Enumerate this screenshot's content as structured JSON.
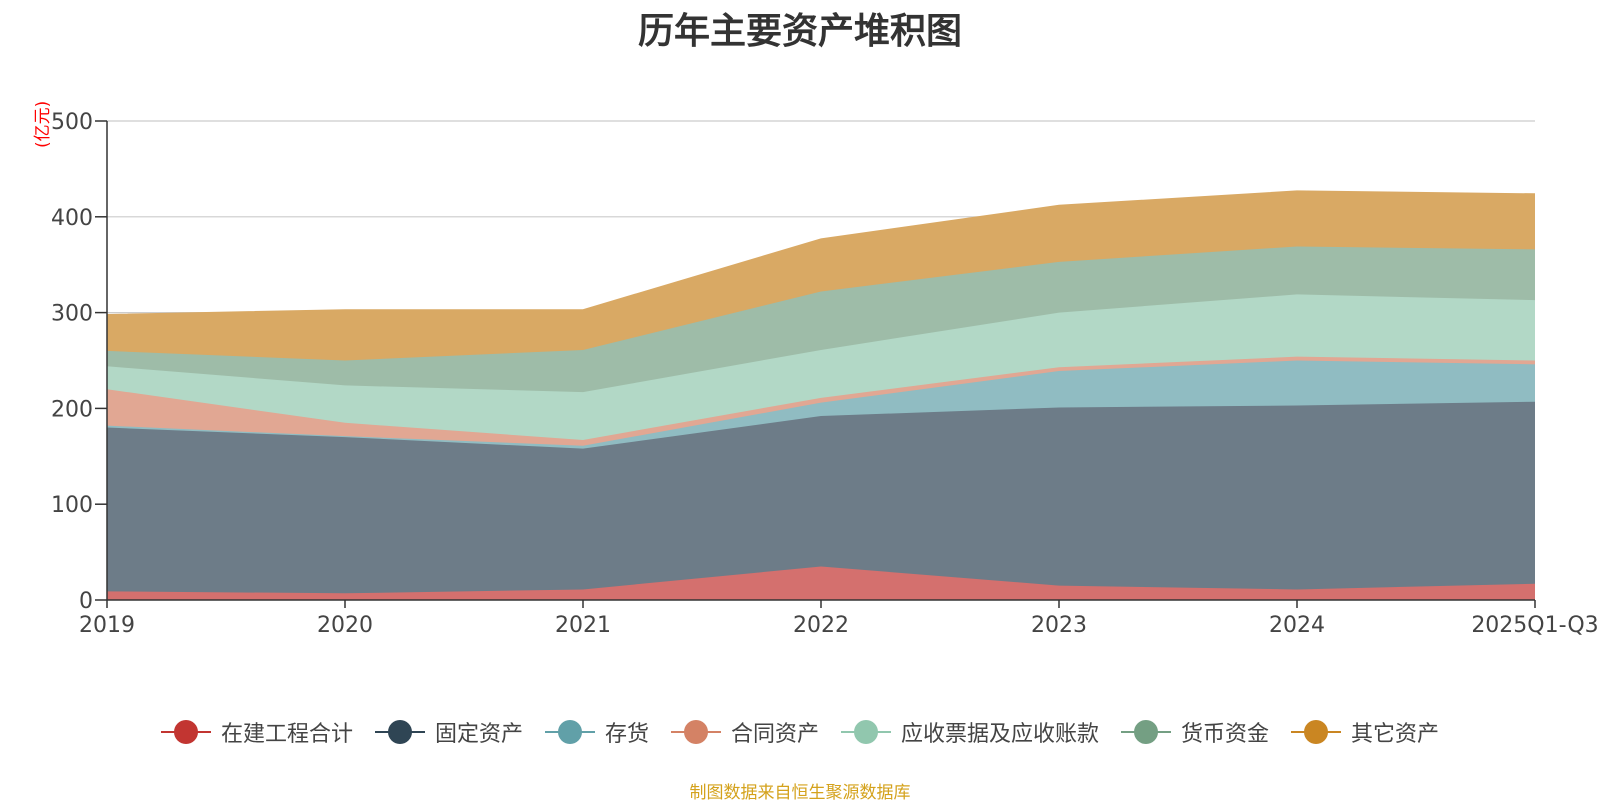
{
  "chart_data": {
    "type": "area",
    "stacked": true,
    "title": "历年主要资产堆积图",
    "y_unit": "(亿元)",
    "ylim": [
      0,
      500
    ],
    "yticks": [
      "0",
      "100",
      "200",
      "300",
      "400",
      "500"
    ],
    "categories": [
      "2019",
      "2020",
      "2021",
      "2022",
      "2023",
      "2024",
      "2025Q1-Q3"
    ],
    "series": [
      {
        "name": "在建工程合计",
        "color": "#c23531",
        "area_color": "#d4706e",
        "values": [
          9,
          7,
          11,
          35,
          15,
          11,
          17
        ]
      },
      {
        "name": "固定资产",
        "color": "#2f4554",
        "area_color": "#6d7c88",
        "values": [
          171,
          163,
          147,
          157,
          186,
          192,
          190
        ]
      },
      {
        "name": "存货",
        "color": "#61a0a8",
        "area_color": "#90bcc2",
        "values": [
          2,
          1,
          3,
          14,
          38,
          47,
          39
        ]
      },
      {
        "name": "合同资产",
        "color": "#d48265",
        "area_color": "#e1a793",
        "values": [
          38,
          14,
          6,
          5,
          4,
          4,
          4
        ]
      },
      {
        "name": "应收票据及应收账款",
        "color": "#91c7ae",
        "area_color": "#b2d8c6",
        "values": [
          24,
          39,
          50,
          50,
          57,
          65,
          63
        ]
      },
      {
        "name": "货币资金",
        "color": "#749f83",
        "area_color": "#9ebca8",
        "values": [
          16,
          26,
          44,
          61,
          53,
          50,
          53
        ]
      },
      {
        "name": "其它资产",
        "color": "#ca8622",
        "area_color": "#d9a964",
        "values": [
          38,
          53,
          42,
          55,
          59,
          58,
          58
        ]
      }
    ]
  },
  "source_note": "制图数据来自恒生聚源数据库",
  "colors": {
    "title": "#333333",
    "axis": "#333333",
    "grid": "#cccccc",
    "y_unit": "#ff0000",
    "source_note": "#d4a21c"
  }
}
